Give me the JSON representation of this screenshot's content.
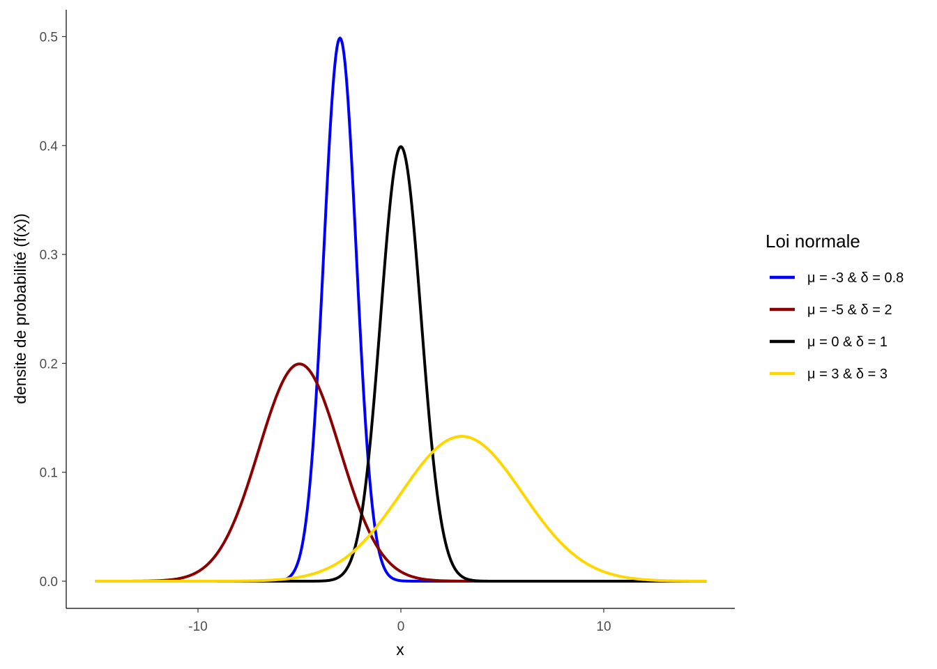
{
  "chart_data": {
    "type": "line",
    "title": "",
    "xlabel": "x",
    "ylabel": "densite de probabilité (f(x))",
    "xlim": [
      -15,
      15
    ],
    "ylim": [
      0,
      0.5
    ],
    "x_ticks": [
      -10,
      0,
      10
    ],
    "y_ticks": [
      0.0,
      0.1,
      0.2,
      0.3,
      0.4,
      0.5
    ],
    "x_tick_labels": [
      "-10",
      "0",
      "10"
    ],
    "y_tick_labels": [
      "0.0",
      "0.1",
      "0.2",
      "0.3",
      "0.4",
      "0.5"
    ],
    "grid": false,
    "legend": {
      "title": "Loi normale",
      "placement": "right"
    },
    "series": [
      {
        "name": "μ = -3 & δ = 0.8",
        "distribution": "normal",
        "mean": -3,
        "sd": 0.8,
        "color": "#0000FF"
      },
      {
        "name": "μ = -5 & δ = 2",
        "distribution": "normal",
        "mean": -5,
        "sd": 2,
        "color": "#8B0000"
      },
      {
        "name": "μ = 0 & δ = 1",
        "distribution": "normal",
        "mean": 0,
        "sd": 1,
        "color": "#000000"
      },
      {
        "name": "μ = 3 & δ = 3",
        "distribution": "normal",
        "mean": 3,
        "sd": 3,
        "color": "#FFD700"
      }
    ]
  }
}
